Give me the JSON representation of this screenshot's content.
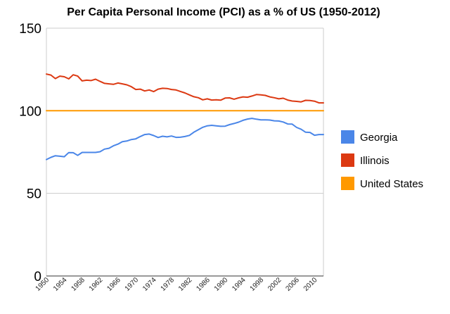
{
  "chart_data": {
    "type": "line",
    "title": "Per Capita Personal Income (PCI) as a % of US (1950-2012)",
    "xlabel": "",
    "ylabel": "",
    "xlim": [
      1950,
      2012
    ],
    "ylim": [
      0,
      150
    ],
    "yticks": [
      0,
      50,
      100,
      150
    ],
    "xticks": [
      1950,
      1954,
      1958,
      1962,
      1966,
      1970,
      1974,
      1978,
      1982,
      1986,
      1990,
      1994,
      1998,
      2002,
      2006,
      2010
    ],
    "grid": true,
    "legend_position": "right",
    "x": [
      1950,
      1951,
      1952,
      1953,
      1954,
      1955,
      1956,
      1957,
      1958,
      1959,
      1960,
      1961,
      1962,
      1963,
      1964,
      1965,
      1966,
      1967,
      1968,
      1969,
      1970,
      1971,
      1972,
      1973,
      1974,
      1975,
      1976,
      1977,
      1978,
      1979,
      1980,
      1981,
      1982,
      1983,
      1984,
      1985,
      1986,
      1987,
      1988,
      1989,
      1990,
      1991,
      1992,
      1993,
      1994,
      1995,
      1996,
      1997,
      1998,
      1999,
      2000,
      2001,
      2002,
      2003,
      2004,
      2005,
      2006,
      2007,
      2008,
      2009,
      2010,
      2011,
      2012
    ],
    "series": [
      {
        "name": "Georgia",
        "color": "#4a86e8",
        "values": [
          70.5,
          71.8,
          72.8,
          72.5,
          72.2,
          74.7,
          74.6,
          73.0,
          74.8,
          74.8,
          74.8,
          74.8,
          75.2,
          76.8,
          77.3,
          78.8,
          79.8,
          81.3,
          81.7,
          82.6,
          83.0,
          84.4,
          85.6,
          85.9,
          85.0,
          83.8,
          84.6,
          84.2,
          84.7,
          83.9,
          84.0,
          84.4,
          85.1,
          87.0,
          88.5,
          90.0,
          90.9,
          91.2,
          90.9,
          90.6,
          90.7,
          91.6,
          92.3,
          93.1,
          94.2,
          95.0,
          95.4,
          94.9,
          94.5,
          94.5,
          94.4,
          93.9,
          93.8,
          93.2,
          92.0,
          91.9,
          89.9,
          88.8,
          87.0,
          86.9,
          85.2,
          85.6,
          85.6
        ]
      },
      {
        "name": "Illinois",
        "color": "#dc3912",
        "values": [
          122.2,
          121.6,
          119.5,
          121.0,
          120.6,
          119.3,
          121.8,
          121.0,
          118.1,
          118.5,
          118.3,
          119.1,
          117.8,
          116.6,
          116.3,
          116.0,
          116.8,
          116.3,
          115.7,
          114.6,
          112.9,
          113.1,
          112.0,
          112.6,
          111.6,
          113.1,
          113.6,
          113.5,
          112.9,
          112.6,
          111.7,
          110.8,
          109.6,
          108.5,
          107.9,
          106.6,
          107.2,
          106.5,
          106.6,
          106.4,
          107.7,
          107.8,
          107.0,
          107.8,
          108.4,
          108.2,
          108.9,
          109.8,
          109.6,
          109.3,
          108.4,
          107.9,
          107.2,
          107.6,
          106.5,
          105.9,
          105.7,
          105.4,
          106.3,
          106.2,
          105.8,
          104.8,
          104.8
        ]
      },
      {
        "name": "United States",
        "color": "#ff9900",
        "values": [
          100,
          100,
          100,
          100,
          100,
          100,
          100,
          100,
          100,
          100,
          100,
          100,
          100,
          100,
          100,
          100,
          100,
          100,
          100,
          100,
          100,
          100,
          100,
          100,
          100,
          100,
          100,
          100,
          100,
          100,
          100,
          100,
          100,
          100,
          100,
          100,
          100,
          100,
          100,
          100,
          100,
          100,
          100,
          100,
          100,
          100,
          100,
          100,
          100,
          100,
          100,
          100,
          100,
          100,
          100,
          100,
          100,
          100,
          100,
          100,
          100,
          100,
          100
        ]
      }
    ]
  }
}
